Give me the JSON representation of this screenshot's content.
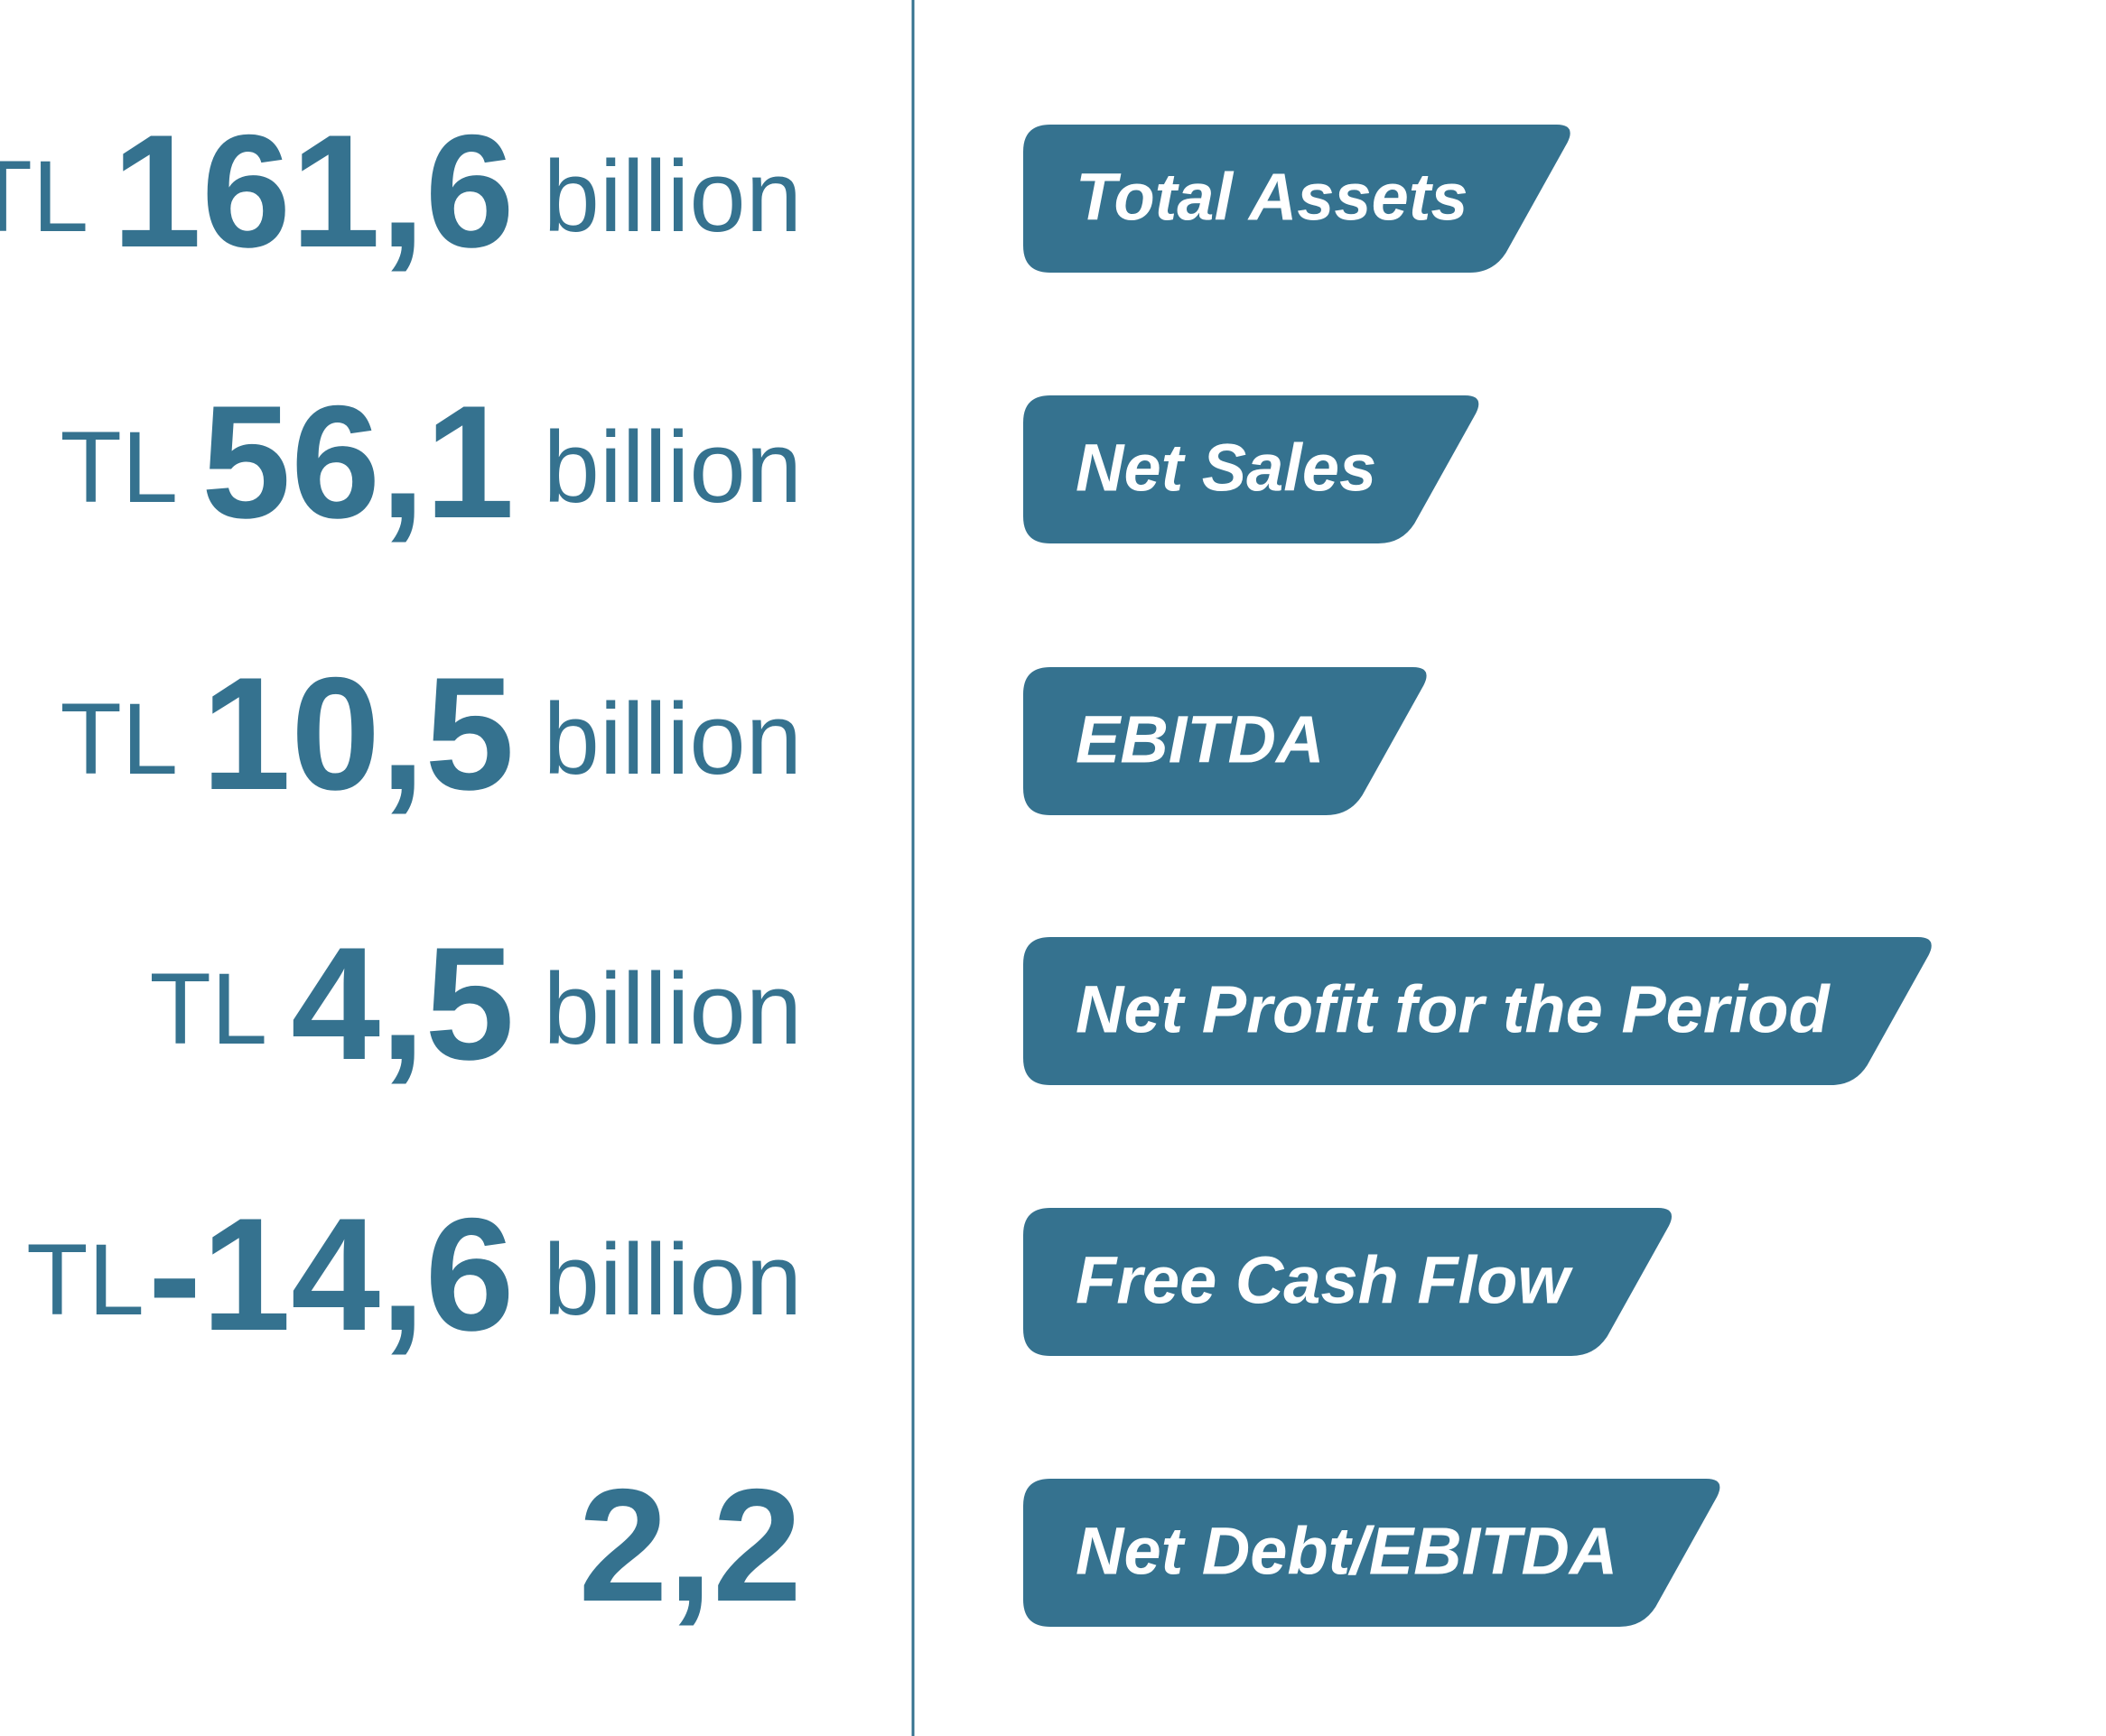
{
  "items": [
    {
      "prefix": "TL",
      "value": "161,6",
      "unit": "billion",
      "label": "Total Assets"
    },
    {
      "prefix": "TL",
      "value": "56,1",
      "unit": "billion",
      "label": "Net Sales"
    },
    {
      "prefix": "TL",
      "value": "10,5",
      "unit": "billion",
      "label": "EBITDA"
    },
    {
      "prefix": "TL",
      "value": "4,5",
      "unit": "billion",
      "label": "Net Profit for the Period"
    },
    {
      "prefix": "TL",
      "value": "-14,6",
      "unit": "billion",
      "label": "Free Cash Flow"
    },
    {
      "value": "2,2",
      "label": "Net Debt/EBITDA"
    }
  ]
}
